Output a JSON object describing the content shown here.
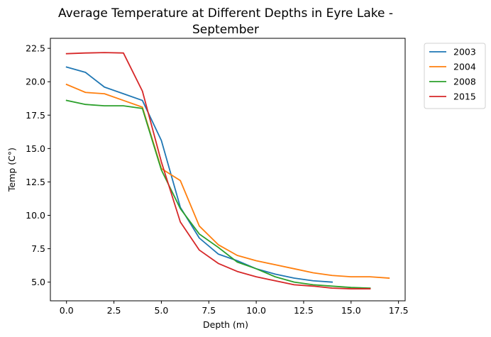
{
  "chart_data": {
    "type": "line",
    "title_lines": [
      "Average Temperature at Different Depths in Eyre Lake -",
      "September"
    ],
    "xlabel": "Depth (m)",
    "ylabel": "Temp (C°)",
    "xlim": [
      -0.85,
      17.85
    ],
    "ylim": [
      3.6,
      23.25
    ],
    "xticks": [
      0.0,
      2.5,
      5.0,
      7.5,
      10.0,
      12.5,
      15.0,
      17.5
    ],
    "xtick_labels": [
      "0.0",
      "2.5",
      "5.0",
      "7.5",
      "10.0",
      "12.5",
      "15.0",
      "17.5"
    ],
    "yticks": [
      5.0,
      7.5,
      10.0,
      12.5,
      15.0,
      17.5,
      20.0,
      22.5
    ],
    "ytick_labels": [
      "5.0",
      "7.5",
      "10.0",
      "12.5",
      "15.0",
      "17.5",
      "20.0",
      "22.5"
    ],
    "grid": false,
    "legend_position": "outside-top-right",
    "series": [
      {
        "name": "2003",
        "color": "#1f77b4",
        "x": [
          0,
          1,
          2,
          3,
          4,
          5,
          6,
          7,
          8,
          9,
          10,
          11,
          12,
          13,
          14
        ],
        "y": [
          21.1,
          20.7,
          19.6,
          19.1,
          18.6,
          15.6,
          10.6,
          8.3,
          7.1,
          6.6,
          6.0,
          5.6,
          5.3,
          5.1,
          5.0
        ]
      },
      {
        "name": "2004",
        "color": "#ff7f0e",
        "x": [
          0,
          1,
          2,
          3,
          4,
          5,
          6,
          7,
          8,
          9,
          10,
          11,
          12,
          13,
          14,
          15,
          16,
          17
        ],
        "y": [
          19.8,
          19.2,
          19.1,
          18.6,
          18.1,
          13.5,
          12.6,
          9.2,
          7.8,
          7.0,
          6.6,
          6.3,
          6.0,
          5.7,
          5.5,
          5.4,
          5.4,
          5.3
        ]
      },
      {
        "name": "2008",
        "color": "#2ca02c",
        "x": [
          0,
          1,
          2,
          3,
          4,
          5,
          6,
          7,
          8,
          9,
          10,
          11,
          12,
          13,
          14,
          15,
          16
        ],
        "y": [
          18.6,
          18.3,
          18.2,
          18.2,
          18.0,
          13.4,
          10.5,
          8.6,
          7.6,
          6.5,
          6.0,
          5.4,
          5.0,
          4.8,
          4.7,
          4.6,
          4.55
        ]
      },
      {
        "name": "2015",
        "color": "#d62728",
        "x": [
          0,
          1,
          2,
          3,
          4,
          5,
          6,
          7,
          8,
          9,
          10,
          11,
          12,
          13,
          14,
          15,
          16
        ],
        "y": [
          22.1,
          22.15,
          22.18,
          22.15,
          19.3,
          14.0,
          9.5,
          7.4,
          6.4,
          5.8,
          5.4,
          5.1,
          4.8,
          4.7,
          4.55,
          4.5,
          4.5
        ]
      }
    ]
  }
}
